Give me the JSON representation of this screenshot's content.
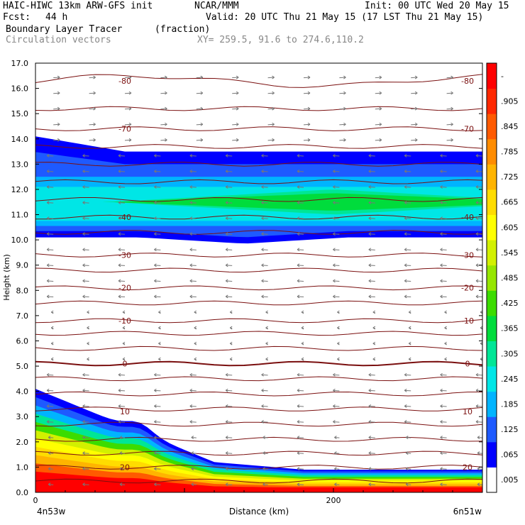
{
  "header": {
    "model": "HAIC-HIWC 13km ARW-GFS init",
    "org": "NCAR/MMM",
    "init": "Init: 00 UTC Wed 20 May 15",
    "fcst_label": "Fcst:",
    "fcst_value": "44 h",
    "valid": "Valid: 20 UTC Thu 21 May 15 (17 LST Thu 21 May 15)",
    "field_name": "Boundary Layer Tracer",
    "field_units": "(fraction)",
    "vector_label": "Circulation vectors",
    "xy_label": "XY= 259.5, 91.6 to 274.6,110.2"
  },
  "chart_data": {
    "type": "heatmap",
    "xlabel": "Distance (km)",
    "ylabel": "Height (km)",
    "xlim": [
      0,
      300
    ],
    "ylim": [
      0,
      17
    ],
    "x_ticks": [
      0,
      200
    ],
    "y_ticks": [
      "0.0",
      "1.0",
      "2.0",
      "3.0",
      "4.0",
      "5.0",
      "6.0",
      "7.0",
      "8.0",
      "9.0",
      "10.0",
      "11.0",
      "12.0",
      "13.0",
      "14.0",
      "15.0",
      "16.0",
      "17.0"
    ],
    "x_endpoint_left": "4n53w",
    "x_endpoint_right": "6n51w",
    "colorbar_labels": [
      ".005",
      ".065",
      ".125",
      ".185",
      ".245",
      ".305",
      ".365",
      ".425",
      ".485",
      ".545",
      ".605",
      ".665",
      ".725",
      ".785",
      ".845",
      ".905",
      "-"
    ],
    "colorbar_colors": [
      "#ffffff",
      "#0000ff",
      "#1e5aff",
      "#00b4ff",
      "#00e6e6",
      "#00e696",
      "#00dc3c",
      "#3cdc00",
      "#96e600",
      "#d2f000",
      "#ffff00",
      "#ffdc00",
      "#ffb400",
      "#ff8c00",
      "#ff5a00",
      "#ff2800",
      "#ff0000"
    ],
    "contour_labels": [
      {
        "value": "-80",
        "height": 16.3
      },
      {
        "value": "-70",
        "height": 14.4
      },
      {
        "value": "-40",
        "height": 10.9
      },
      {
        "value": "-30",
        "height": 9.4
      },
      {
        "value": "-20",
        "height": 8.1
      },
      {
        "value": "-10",
        "height": 6.8
      },
      {
        "value": "0",
        "height": 5.1
      },
      {
        "value": "10",
        "height": 3.2
      },
      {
        "value": "20",
        "height": 1.0
      }
    ],
    "upper_layer": {
      "bottom_km": 10.1,
      "top_km": 13.5,
      "core_km": [
        11.0,
        12.0
      ],
      "core_value": 0.3
    },
    "boundary_layer": {
      "top_left_km": 4.1,
      "top_right_km": 0.9,
      "surface_value": 0.97
    }
  }
}
